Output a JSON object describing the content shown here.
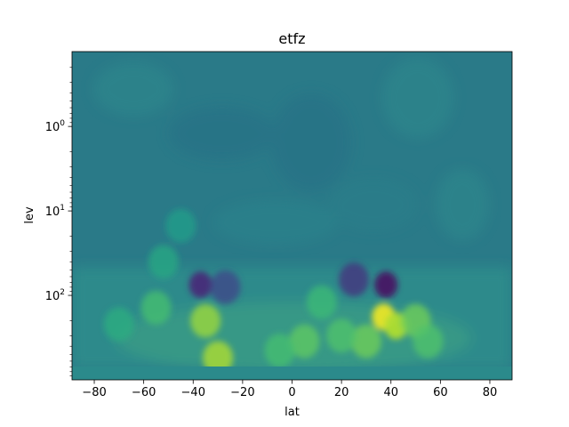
{
  "chart_data": {
    "type": "heatmap",
    "title": "etfz",
    "xlabel": "lat",
    "ylabel": "lev",
    "x_ticks": [
      -80,
      -60,
      -40,
      -20,
      0,
      20,
      40,
      60,
      80
    ],
    "x_tick_labels": [
      "−80",
      "−60",
      "−40",
      "−20",
      "0",
      "20",
      "40",
      "60",
      "80"
    ],
    "xlim": [
      -89,
      89
    ],
    "yscale": "log",
    "y_inverted": true,
    "ylim": [
      1000,
      0.13
    ],
    "y_ticks": [
      1,
      10,
      100
    ],
    "y_tick_labels": [
      {
        "base": "10",
        "exp": "0"
      },
      {
        "base": "10",
        "exp": "1"
      },
      {
        "base": "10",
        "exp": "2"
      }
    ],
    "colormap": "viridis",
    "background_value_color": "#2a7a88",
    "features": [
      {
        "kind": "positive-maximum",
        "lat": 37,
        "lev": 180,
        "level": 0.97
      },
      {
        "kind": "positive-maximum",
        "lat": 42,
        "lev": 230,
        "level": 0.88
      },
      {
        "kind": "positive",
        "lat": 50,
        "lev": 200,
        "level": 0.78
      },
      {
        "kind": "positive",
        "lat": 30,
        "lev": 350,
        "level": 0.78
      },
      {
        "kind": "positive",
        "lat": -35,
        "lev": 200,
        "level": 0.85
      },
      {
        "kind": "positive",
        "lat": -30,
        "lev": 550,
        "level": 0.88
      },
      {
        "kind": "positive",
        "lat": -55,
        "lev": 140,
        "level": 0.7
      },
      {
        "kind": "positive",
        "lat": -52,
        "lev": 40,
        "level": 0.6
      },
      {
        "kind": "positive",
        "lat": -45,
        "lev": 15,
        "level": 0.55
      },
      {
        "kind": "positive",
        "lat": 5,
        "lev": 350,
        "level": 0.75
      },
      {
        "kind": "positive",
        "lat": -5,
        "lev": 450,
        "level": 0.7
      },
      {
        "kind": "positive",
        "lat": 20,
        "lev": 300,
        "level": 0.72
      },
      {
        "kind": "positive",
        "lat": 12,
        "lev": 120,
        "level": 0.68
      },
      {
        "kind": "positive",
        "lat": -70,
        "lev": 220,
        "level": 0.62
      },
      {
        "kind": "positive",
        "lat": 55,
        "lev": 350,
        "level": 0.72
      },
      {
        "kind": "negative-minimum",
        "lat": 38,
        "lev": 75,
        "level": 0.05
      },
      {
        "kind": "negative",
        "lat": 25,
        "lev": 65,
        "level": 0.15
      },
      {
        "kind": "negative-minimum",
        "lat": -37,
        "lev": 75,
        "level": 0.12
      },
      {
        "kind": "negative",
        "lat": -27,
        "lev": 80,
        "level": 0.22
      }
    ]
  }
}
